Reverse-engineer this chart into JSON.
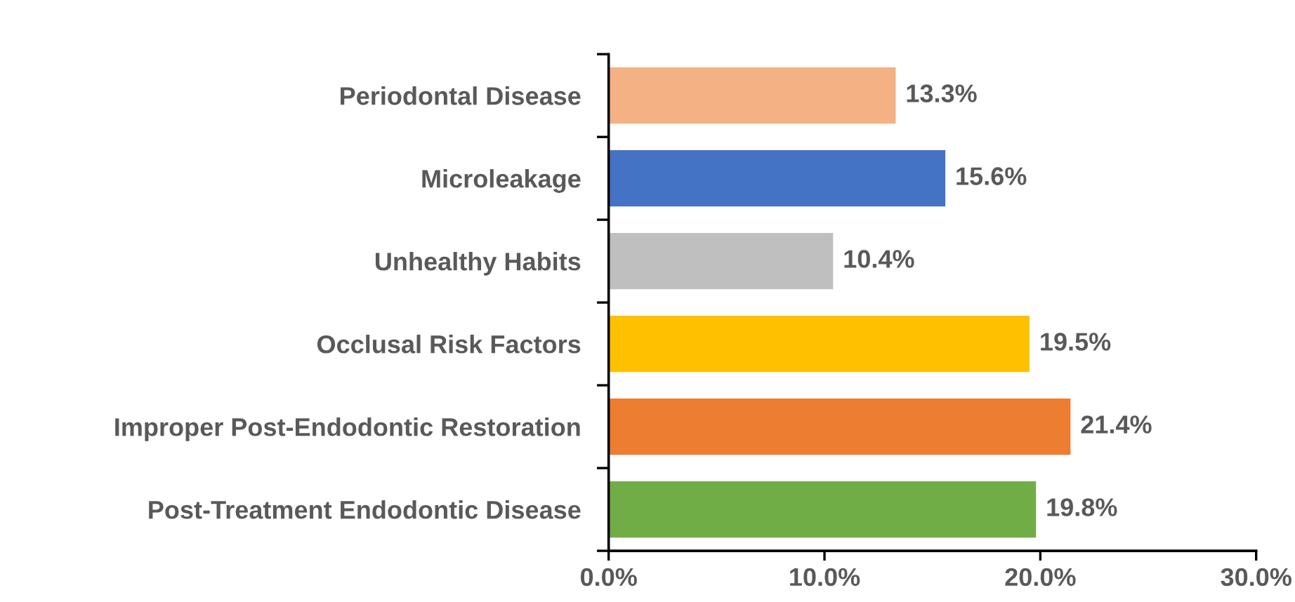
{
  "chart_data": {
    "type": "bar",
    "orientation": "horizontal",
    "categories": [
      "Periodontal Disease",
      "Microleakage",
      "Unhealthy Habits",
      "Occlusal Risk Factors",
      "Improper Post-Endodontic Restoration",
      "Post-Treatment Endodontic Disease"
    ],
    "values": [
      13.3,
      15.6,
      10.4,
      19.5,
      21.4,
      19.8
    ],
    "colors": [
      "#f4b183",
      "#4472c4",
      "#bfbfbf",
      "#ffc000",
      "#ed7d31",
      "#70ad47"
    ],
    "value_labels": [
      "13.3%",
      "15.6%",
      "10.4%",
      "19.5%",
      "21.4%",
      "19.8%"
    ],
    "xlim": [
      0,
      30
    ],
    "xticks": [
      {
        "value": 0,
        "label": "0.0%"
      },
      {
        "value": 10,
        "label": "10.0%"
      },
      {
        "value": 20,
        "label": "20.0%"
      },
      {
        "value": 30,
        "label": "30.0%"
      }
    ],
    "grid": false,
    "legend": false
  }
}
